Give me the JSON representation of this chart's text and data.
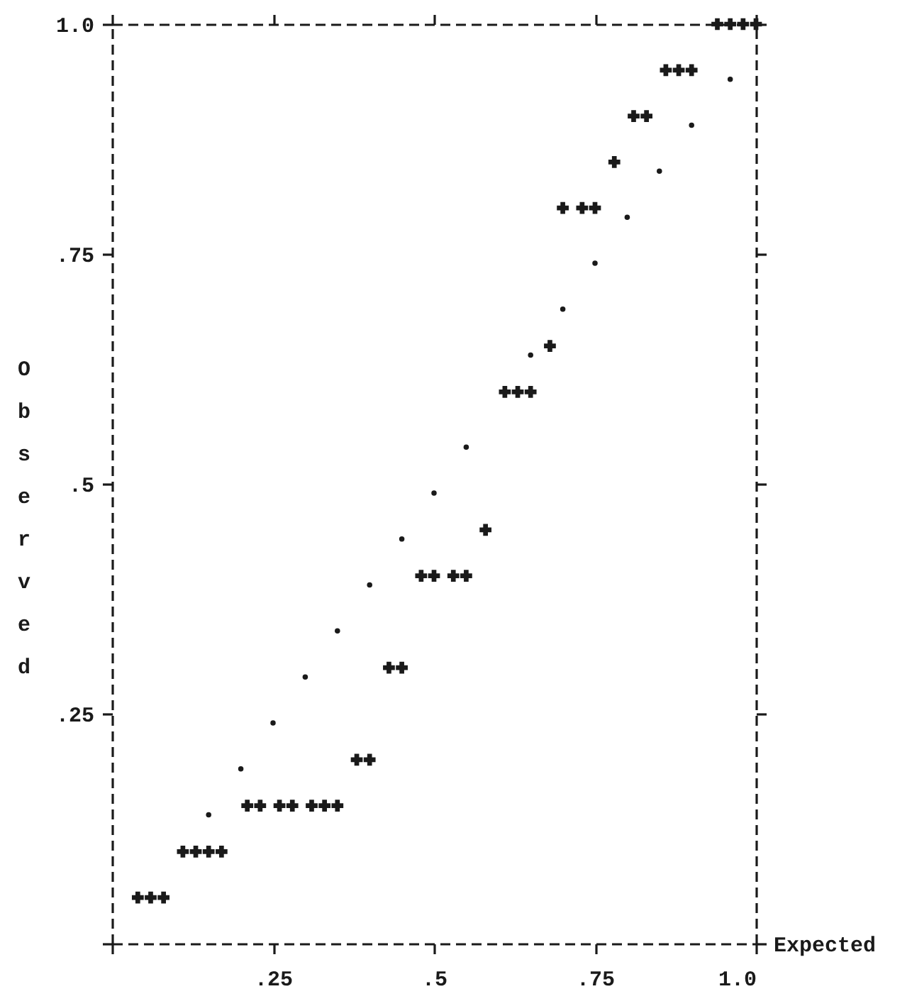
{
  "chart_data": {
    "type": "scatter",
    "xlabel": "Expected",
    "ylabel": "Observed",
    "xlim": [
      0,
      1
    ],
    "ylim": [
      0,
      1
    ],
    "xticks": [
      {
        "value": 0,
        "label": null
      },
      {
        "value": 0.25,
        "label": ".25"
      },
      {
        "value": 0.5,
        "label": ".5"
      },
      {
        "value": 0.75,
        "label": ".75"
      },
      {
        "value": 1,
        "label": "1.0"
      }
    ],
    "yticks": [
      {
        "value": 0,
        "label": null
      },
      {
        "value": 0.25,
        "label": ".25"
      },
      {
        "value": 0.5,
        "label": ".5"
      },
      {
        "value": 0.75,
        "label": ".75"
      },
      {
        "value": 1,
        "label": "1.0"
      }
    ],
    "grid": false,
    "series": [
      {
        "marker": "cross",
        "color": "#1a1a1a",
        "x": [
          0.04,
          0.06,
          0.08,
          0.11,
          0.13,
          0.15,
          0.17,
          0.21,
          0.23,
          0.26,
          0.28,
          0.31,
          0.33,
          0.35,
          0.38,
          0.4,
          0.43,
          0.45,
          0.48,
          0.5,
          0.53,
          0.55,
          0.58,
          0.61,
          0.63,
          0.65,
          0.68,
          0.7,
          0.73,
          0.75,
          0.78,
          0.81,
          0.83,
          0.86,
          0.88,
          0.9,
          0.94,
          0.96,
          0.98,
          1.0
        ],
        "values": [
          0.05,
          0.05,
          0.05,
          0.1,
          0.1,
          0.1,
          0.1,
          0.15,
          0.15,
          0.15,
          0.15,
          0.15,
          0.15,
          0.15,
          0.2,
          0.2,
          0.3,
          0.3,
          0.4,
          0.4,
          0.4,
          0.4,
          0.45,
          0.6,
          0.6,
          0.6,
          0.65,
          0.8,
          0.8,
          0.8,
          0.85,
          0.9,
          0.9,
          0.95,
          0.95,
          0.95,
          1.0,
          1.0,
          1.0,
          1.0
        ]
      },
      {
        "marker": "circle",
        "color": "#1a1a1a",
        "x": [
          0.15,
          0.2,
          0.25,
          0.3,
          0.35,
          0.4,
          0.45,
          0.5,
          0.55,
          0.65,
          0.7,
          0.75,
          0.8,
          0.85,
          0.9,
          0.96
        ],
        "values": [
          0.14,
          0.19,
          0.24,
          0.29,
          0.34,
          0.39,
          0.44,
          0.49,
          0.54,
          0.64,
          0.69,
          0.74,
          0.79,
          0.84,
          0.89,
          0.94
        ]
      }
    ]
  }
}
